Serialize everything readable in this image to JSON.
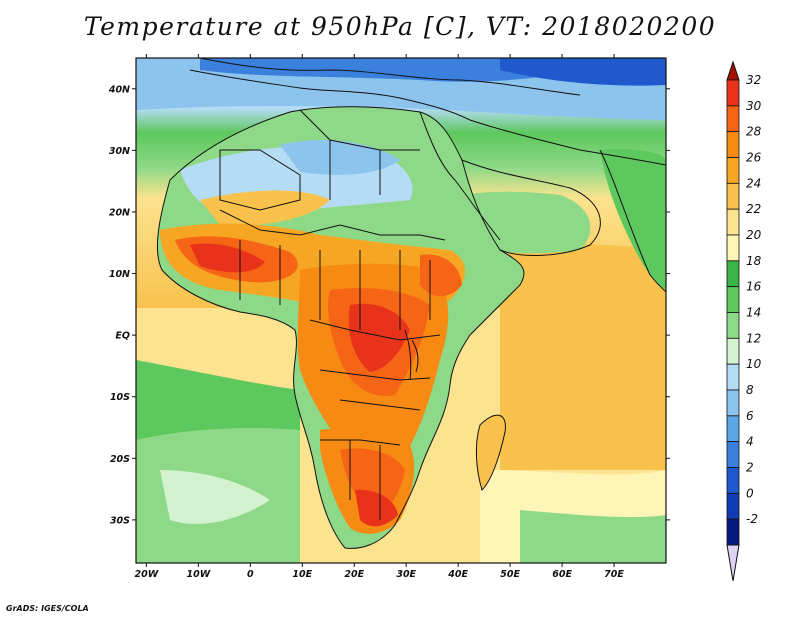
{
  "title": "Temperature at 950hPa [C], VT: 2018020200",
  "credit": "GrADS: IGES/COLA",
  "map": {
    "lon_labels": [
      "20W",
      "10W",
      "0",
      "10E",
      "20E",
      "30E",
      "40E",
      "50E",
      "60E",
      "70E"
    ],
    "lat_labels": [
      "40N",
      "30N",
      "20N",
      "10N",
      "EQ",
      "10S",
      "20S",
      "30S"
    ],
    "lon_range": [
      -22,
      80
    ],
    "lat_range": [
      -37,
      45
    ]
  },
  "colorbar": {
    "levels": [
      "32",
      "30",
      "28",
      "26",
      "24",
      "22",
      "20",
      "18",
      "16",
      "14",
      "12",
      "10",
      "8",
      "6",
      "4",
      "2",
      "0",
      "-2"
    ],
    "colors": [
      "#a50f03",
      "#e8331a",
      "#f66516",
      "#f78a13",
      "#f6a623",
      "#f8c24d",
      "#fce38f",
      "#fff5b7",
      "#39b54a",
      "#5dc85d",
      "#8ed987",
      "#d3f2cf",
      "#b5dcf5",
      "#8cc4ee",
      "#5aa6e6",
      "#3a80dc",
      "#1f59cd",
      "#113bb3",
      "#061a7d",
      "#ddd3f5"
    ]
  }
}
